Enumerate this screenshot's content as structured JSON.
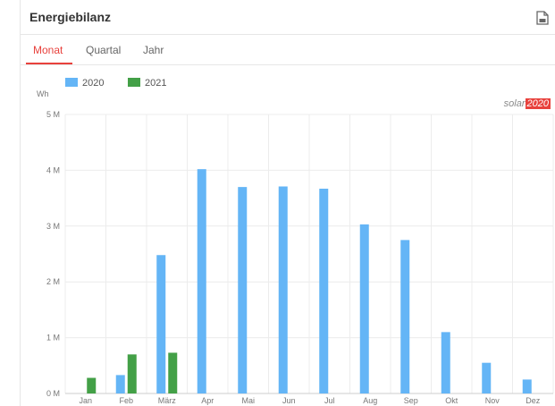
{
  "card": {
    "title": "Energiebilanz",
    "export_icon": "document-export-icon"
  },
  "tabs": [
    {
      "label": "Monat",
      "active": true
    },
    {
      "label": "Quartal",
      "active": false
    },
    {
      "label": "Jahr",
      "active": false
    }
  ],
  "logo": {
    "prefix": "solar",
    "suffix": "2020"
  },
  "colors": {
    "accent": "#e8413c",
    "series_2020": "#64b5f6",
    "series_2021": "#43a047"
  },
  "chart_data": {
    "type": "bar",
    "ylabel": "Wh",
    "ylim": [
      0,
      5000000
    ],
    "yticks": [
      {
        "value": 0,
        "label": "0 M"
      },
      {
        "value": 1000000,
        "label": "1 M"
      },
      {
        "value": 2000000,
        "label": "2 M"
      },
      {
        "value": 3000000,
        "label": "3 M"
      },
      {
        "value": 4000000,
        "label": "4 M"
      },
      {
        "value": 5000000,
        "label": "5 M"
      }
    ],
    "categories": [
      "Jan",
      "Feb",
      "März",
      "Apr",
      "Mai",
      "Jun",
      "Jul",
      "Aug",
      "Sep",
      "Okt",
      "Nov",
      "Dez"
    ],
    "series": [
      {
        "name": "2020",
        "color": "#64b5f6",
        "values": [
          0,
          330000,
          2480000,
          4020000,
          3700000,
          3710000,
          3670000,
          3030000,
          2750000,
          1100000,
          550000,
          250000
        ]
      },
      {
        "name": "2021",
        "color": "#43a047",
        "values": [
          280000,
          700000,
          730000,
          0,
          0,
          0,
          0,
          0,
          0,
          0,
          0,
          0
        ]
      }
    ],
    "grid": true,
    "legend": "top-left"
  }
}
